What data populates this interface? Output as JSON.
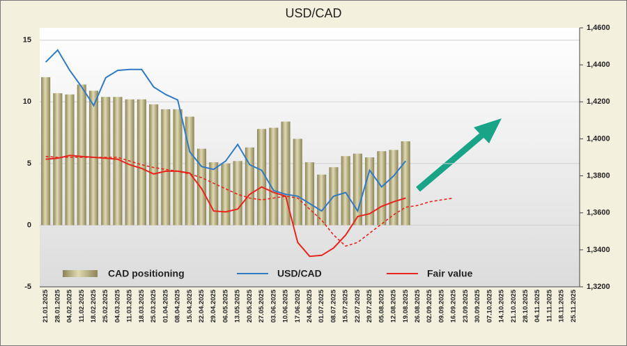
{
  "chart_data": {
    "type": "bar-line",
    "title": "USD/CAD",
    "categories": [
      "21.01.2025",
      "28.01.2025",
      "04.02.2025",
      "11.02.2025",
      "18.02.2025",
      "25.02.2025",
      "04.03.2025",
      "11.03.2025",
      "18.03.2025",
      "25.03.2025",
      "01.04.2025",
      "08.04.2025",
      "15.04.2025",
      "22.04.2025",
      "29.04.2025",
      "06.05.2025",
      "13.05.2025",
      "20.05.2025",
      "27.05.2025",
      "03.06.2025",
      "10.06.2025",
      "17.06.2025",
      "24.06.2025",
      "01.07.2025",
      "08.07.2025",
      "15.07.2025",
      "22.07.2025",
      "29.07.2025",
      "05.08.2025",
      "12.08.2025",
      "19.08.2025",
      "26.08.2025",
      "02.09.2025",
      "09.09.2025",
      "16.09.2025",
      "23.09.2025",
      "30.09.2025",
      "07.10.2025",
      "14.10.2025",
      "21.10.2025",
      "28.10.2025",
      "04.11.2025",
      "11.11.2025",
      "18.11.2025",
      "25.11.2025"
    ],
    "series": [
      {
        "name": "CAD positioning",
        "kind": "bar",
        "color": "#b8b07e",
        "values": [
          12.0,
          10.7,
          10.6,
          11.4,
          10.9,
          10.4,
          10.4,
          10.2,
          10.2,
          9.8,
          9.4,
          9.4,
          8.8,
          6.2,
          5.1,
          5.0,
          5.2,
          6.3,
          7.8,
          7.9,
          8.4,
          7.0,
          5.1,
          4.1,
          4.7,
          5.6,
          5.8,
          5.5,
          6.0,
          6.1,
          6.8,
          null,
          null,
          null,
          null,
          null,
          null,
          null,
          null,
          null,
          null,
          null,
          null,
          null,
          null
        ]
      },
      {
        "name": "USD/CAD",
        "kind": "line",
        "axis": "y2",
        "color": "#2e7bc4",
        "values": [
          1.4415,
          1.448,
          1.437,
          1.428,
          1.418,
          1.433,
          1.437,
          1.4375,
          1.4375,
          1.428,
          1.424,
          1.421,
          1.393,
          1.385,
          1.3835,
          1.388,
          1.397,
          1.386,
          1.383,
          1.372,
          1.37,
          1.369,
          1.365,
          1.361,
          1.369,
          1.371,
          1.361,
          1.383,
          1.374,
          1.38,
          1.388,
          null,
          null,
          null,
          null,
          null,
          null,
          null,
          null,
          null,
          null,
          null,
          null,
          null,
          null
        ]
      },
      {
        "name": "Fair value",
        "kind": "line",
        "axis": "y2",
        "color": "#e8241c",
        "values": [
          1.389,
          1.3895,
          1.391,
          1.3905,
          1.39,
          1.3895,
          1.389,
          1.386,
          1.384,
          1.381,
          1.3825,
          1.3825,
          1.3815,
          1.373,
          1.361,
          1.3605,
          1.362,
          1.37,
          1.374,
          1.371,
          1.369,
          1.344,
          1.3365,
          1.337,
          1.341,
          1.348,
          1.358,
          1.3595,
          1.3635,
          1.366,
          1.368,
          null,
          null,
          null,
          null,
          null,
          null,
          null,
          null,
          null,
          null,
          null,
          null,
          null,
          null
        ]
      },
      {
        "kind": "line",
        "axis": "y2",
        "dashed": true,
        "color": "#e8241c",
        "values": [
          1.3905,
          1.39,
          1.39,
          1.39,
          1.39,
          1.39,
          1.39,
          1.388,
          1.386,
          1.3845,
          1.3835,
          1.3825,
          1.381,
          1.379,
          1.376,
          1.373,
          1.37,
          1.368,
          1.367,
          1.368,
          1.369,
          1.368,
          1.362,
          1.356,
          1.348,
          1.342,
          1.344,
          1.349,
          1.354,
          1.359,
          1.363,
          1.364,
          1.366,
          1.367,
          1.368,
          null,
          null,
          null,
          null,
          null,
          null,
          null,
          null,
          null,
          null
        ]
      }
    ],
    "ylim": [
      -5,
      16
    ],
    "yticks": [
      -5,
      0,
      5,
      10,
      15
    ],
    "y2lim": [
      1.32,
      1.46
    ],
    "y2ticks": [
      {
        "value": 1.32,
        "label": "1,3200"
      },
      {
        "value": 1.34,
        "label": "1,3400"
      },
      {
        "value": 1.36,
        "label": "1,3600"
      },
      {
        "value": 1.38,
        "label": "1,3800"
      },
      {
        "value": 1.4,
        "label": "1,4000"
      },
      {
        "value": 1.42,
        "label": "1,4200"
      },
      {
        "value": 1.44,
        "label": "1,4400"
      },
      {
        "value": 1.46,
        "label": "1,4600"
      }
    ],
    "grid": true
  }
}
